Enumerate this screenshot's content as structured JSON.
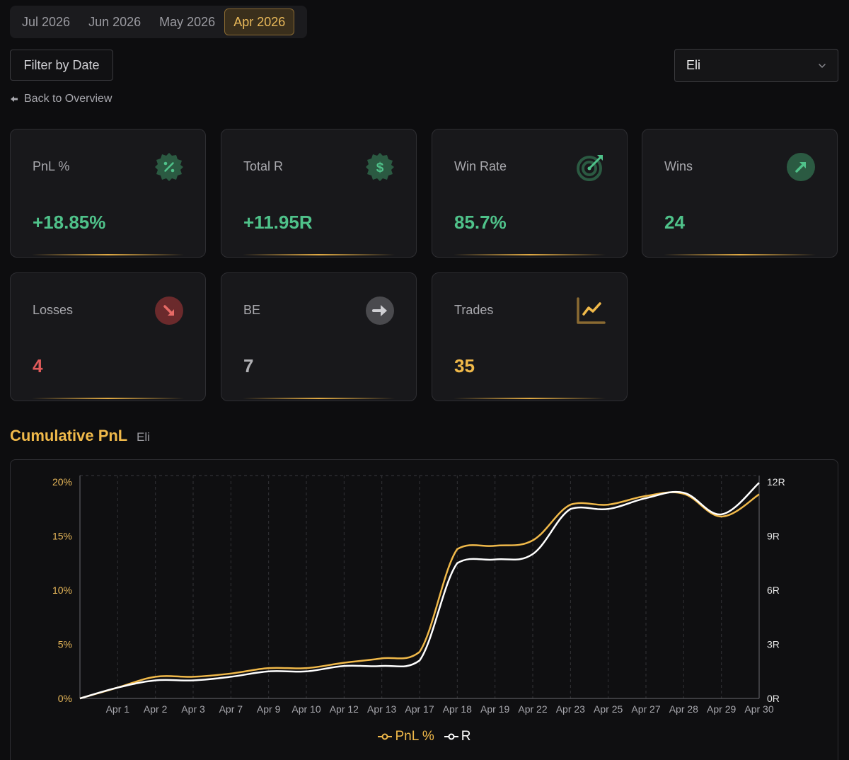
{
  "month_tabs": [
    {
      "label": "Jul 2026",
      "active": false
    },
    {
      "label": "Jun 2026",
      "active": false
    },
    {
      "label": "May 2026",
      "active": false
    },
    {
      "label": "Apr 2026",
      "active": true
    }
  ],
  "filter_button": "Filter by Date",
  "user_select": {
    "value": "Eli"
  },
  "back_link": "Back to Overview",
  "stats": {
    "pnl": {
      "label": "PnL %",
      "value": "+18.85%",
      "icon": "percent-badge-icon"
    },
    "total_r": {
      "label": "Total R",
      "value": "+11.95R",
      "icon": "dollar-badge-icon"
    },
    "win_rate": {
      "label": "Win Rate",
      "value": "85.7%",
      "icon": "target-icon"
    },
    "wins": {
      "label": "Wins",
      "value": "24",
      "icon": "arrow-up-right-icon"
    },
    "losses": {
      "label": "Losses",
      "value": "4",
      "icon": "arrow-down-right-icon"
    },
    "be": {
      "label": "BE",
      "value": "7",
      "icon": "arrow-right-icon"
    },
    "trades": {
      "label": "Trades",
      "value": "35",
      "icon": "line-chart-icon"
    }
  },
  "colors": {
    "accent_gold": "#f0b94a",
    "positive_green": "#4fc28a",
    "negative_red": "#e05a5a",
    "neutral_gray": "#b0b0b4",
    "r_line_white": "#ffffff"
  },
  "chart_title": "Cumulative PnL",
  "chart_subtitle": "Eli",
  "chart_data": {
    "type": "line",
    "title": "Cumulative PnL",
    "subtitle": "Eli",
    "categories": [
      "Apr 1",
      "Apr 2",
      "Apr 3",
      "Apr 7",
      "Apr 9",
      "Apr 10",
      "Apr 12",
      "Apr 13",
      "Apr 17",
      "Apr 18",
      "Apr 19",
      "Apr 22",
      "Apr 23",
      "Apr 25",
      "Apr 27",
      "Apr 28",
      "Apr 29",
      "Apr 30"
    ],
    "y_left": {
      "ticks": [
        "0%",
        "5%",
        "10%",
        "15%",
        "20%"
      ],
      "range": [
        0,
        20
      ]
    },
    "y_right": {
      "ticks": [
        "0R",
        "3R",
        "6R",
        "9R",
        "12R"
      ],
      "range": [
        0,
        12
      ]
    },
    "grid": "vertical dashed lines at each category, horizontal dashed line at top",
    "legend_position": "bottom-center",
    "series": [
      {
        "name": "PnL %",
        "axis": "left",
        "color": "#f0b94a",
        "start": 0.0,
        "values": [
          1.0,
          2.0,
          2.0,
          2.3,
          2.8,
          2.8,
          3.3,
          3.7,
          4.3,
          13.8,
          14.1,
          14.6,
          17.9,
          17.9,
          18.7,
          18.9,
          16.8,
          18.85
        ]
      },
      {
        "name": "R",
        "axis": "right",
        "color": "#ffffff",
        "start": 0.0,
        "values": [
          0.6,
          1.0,
          1.0,
          1.2,
          1.5,
          1.5,
          1.8,
          1.8,
          2.1,
          7.5,
          7.7,
          8.0,
          10.5,
          10.5,
          11.1,
          11.4,
          10.2,
          11.95
        ]
      }
    ]
  }
}
